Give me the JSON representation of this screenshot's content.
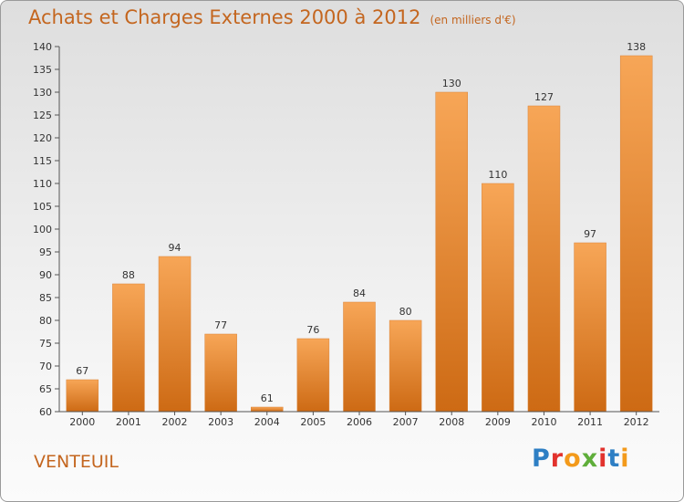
{
  "title": "Achats et Charges Externes 2000 à 2012",
  "subtitle": "(en milliers d'€)",
  "commune": "VENTEUIL",
  "logo": {
    "letters": [
      "P",
      "r",
      "o",
      "x",
      "i",
      "t",
      "i"
    ],
    "colors": [
      "#2e7fc4",
      "#e2322d",
      "#f39a1b",
      "#5fae3a",
      "#e2322d",
      "#2e7fc4",
      "#f39a1b"
    ]
  },
  "chart_data": {
    "type": "bar",
    "categories": [
      "2000",
      "2001",
      "2002",
      "2003",
      "2004",
      "2005",
      "2006",
      "2007",
      "2008",
      "2009",
      "2010",
      "2011",
      "2012"
    ],
    "values": [
      67,
      88,
      94,
      77,
      61,
      76,
      84,
      80,
      130,
      110,
      127,
      97,
      138
    ],
    "ylim": [
      60,
      140
    ],
    "yticks": [
      60,
      65,
      70,
      75,
      80,
      85,
      90,
      95,
      100,
      105,
      110,
      115,
      120,
      125,
      130,
      135,
      140
    ],
    "grid": false,
    "bar_color": "#f0922f"
  }
}
